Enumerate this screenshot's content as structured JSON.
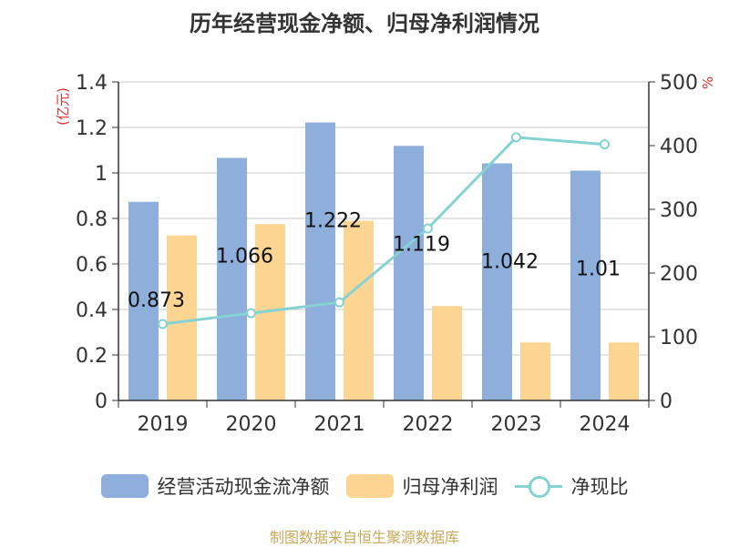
{
  "chart_data": {
    "type": "bar",
    "title": "历年经营现金净额、归母净利润情况",
    "categories": [
      "2019",
      "2020",
      "2021",
      "2022",
      "2023",
      "2024"
    ],
    "series": [
      {
        "name": "经营活动现金流净额",
        "type": "bar",
        "axis": "left",
        "color": "#8eaedb",
        "values": [
          0.873,
          1.066,
          1.222,
          1.119,
          1.042,
          1.01
        ],
        "data_labels": [
          "0.873",
          "1.066",
          "1.222",
          "1.119",
          "1.042",
          "1.01"
        ]
      },
      {
        "name": "归母净利润",
        "type": "bar",
        "axis": "left",
        "color": "#fdd593",
        "values": [
          0.725,
          0.775,
          0.79,
          0.415,
          0.255,
          0.255
        ]
      },
      {
        "name": "净现比",
        "type": "line",
        "axis": "right",
        "color": "#86d2d3",
        "values": [
          120,
          137,
          154,
          270,
          413,
          402
        ]
      }
    ],
    "y_left": {
      "label": "(亿元)",
      "ylim": [
        0,
        1.4
      ],
      "ticks": [
        "0",
        "0.2",
        "0.4",
        "0.6",
        "0.8",
        "1",
        "1.2",
        "1.4"
      ]
    },
    "y_right": {
      "label": "%",
      "ylim": [
        0,
        500
      ],
      "ticks": [
        "0",
        "100",
        "200",
        "300",
        "400",
        "500"
      ]
    },
    "grid": true,
    "legend_position": "bottom"
  },
  "legend": {
    "bar1": "经营活动现金流净额",
    "bar2": "归母净利润",
    "line": "净现比"
  },
  "source": "制图数据来自恒生聚源数据库"
}
